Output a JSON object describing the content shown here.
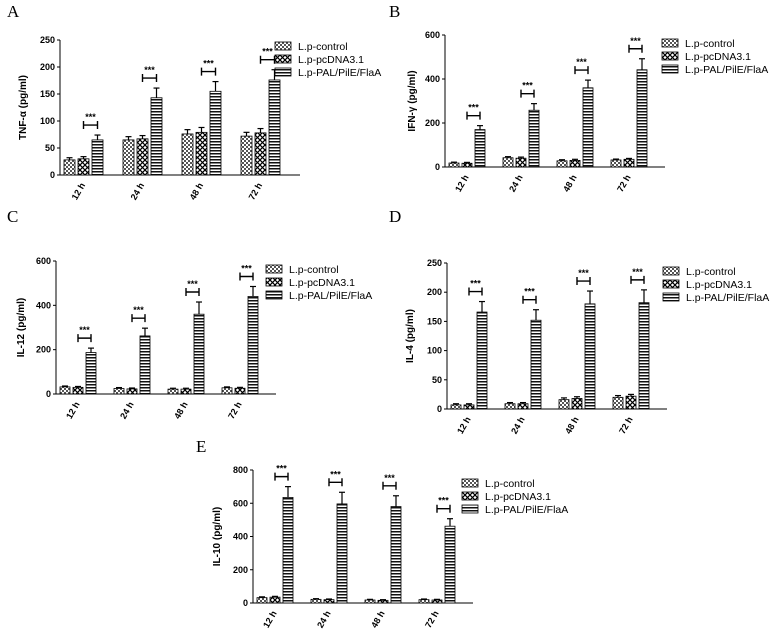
{
  "legend": [
    "L.p-control",
    "L.p-pcDNA3.1",
    "L.p-PAL/PilE/FlaA"
  ],
  "chart_data": [
    {
      "panel": "A",
      "type": "bar",
      "ylabel": "TNF-α (pg/ml)",
      "categories": [
        "12 h",
        "24 h",
        "48 h",
        "72 h"
      ],
      "ylim": [
        0,
        250
      ],
      "yticks": [
        "0",
        "50",
        "100",
        "150",
        "200",
        "250"
      ],
      "significance": "***",
      "series": [
        {
          "name": "L.p-control",
          "values": [
            28,
            65,
            76,
            72
          ],
          "errors": [
            4,
            6,
            8,
            7
          ]
        },
        {
          "name": "L.p-pcDNA3.1",
          "values": [
            30,
            67,
            79,
            78
          ],
          "errors": [
            4,
            6,
            9,
            8
          ]
        },
        {
          "name": "L.p-PAL/PilE/FlaA",
          "values": [
            65,
            143,
            155,
            176
          ],
          "errors": [
            9,
            18,
            18,
            19
          ]
        }
      ]
    },
    {
      "panel": "B",
      "type": "bar",
      "ylabel": "IFN-γ (pg/ml)",
      "categories": [
        "12 h",
        "24 h",
        "48 h",
        "72 h"
      ],
      "ylim": [
        0,
        600
      ],
      "yticks": [
        "0",
        "200",
        "400",
        "600"
      ],
      "significance": "***",
      "series": [
        {
          "name": "L.p-control",
          "values": [
            18,
            42,
            28,
            32
          ],
          "errors": [
            4,
            5,
            5,
            4
          ]
        },
        {
          "name": "L.p-pcDNA3.1",
          "values": [
            17,
            40,
            30,
            35
          ],
          "errors": [
            4,
            5,
            5,
            4
          ]
        },
        {
          "name": "L.p-PAL/PilE/FlaA",
          "values": [
            170,
            258,
            360,
            442
          ],
          "errors": [
            18,
            30,
            35,
            50
          ]
        }
      ]
    },
    {
      "panel": "C",
      "type": "bar",
      "ylabel": "IL-12 (pg/ml)",
      "categories": [
        "12 h",
        "24 h",
        "48 h",
        "72 h"
      ],
      "ylim": [
        0,
        600
      ],
      "yticks": [
        "0",
        "200",
        "400",
        "600"
      ],
      "significance": "***",
      "series": [
        {
          "name": "L.p-control",
          "values": [
            32,
            25,
            22,
            28
          ],
          "errors": [
            4,
            4,
            4,
            4
          ]
        },
        {
          "name": "L.p-pcDNA3.1",
          "values": [
            30,
            23,
            22,
            26
          ],
          "errors": [
            4,
            4,
            4,
            4
          ]
        },
        {
          "name": "L.p-PAL/PilE/FlaA",
          "values": [
            187,
            262,
            360,
            440
          ],
          "errors": [
            20,
            35,
            55,
            45
          ]
        }
      ]
    },
    {
      "panel": "D",
      "type": "bar",
      "ylabel": "IL-4 (pg/ml)",
      "categories": [
        "12 h",
        "24 h",
        "48 h",
        "72 h"
      ],
      "ylim": [
        0,
        250
      ],
      "yticks": [
        "0",
        "50",
        "100",
        "150",
        "200",
        "250"
      ],
      "significance": "***",
      "series": [
        {
          "name": "L.p-control",
          "values": [
            7,
            9,
            16,
            20
          ],
          "errors": [
            2,
            2,
            3,
            3
          ]
        },
        {
          "name": "L.p-pcDNA3.1",
          "values": [
            7,
            9,
            18,
            22
          ],
          "errors": [
            2,
            2,
            3,
            3
          ]
        },
        {
          "name": "L.p-PAL/PilE/FlaA",
          "values": [
            166,
            152,
            180,
            182
          ],
          "errors": [
            18,
            18,
            22,
            22
          ]
        }
      ]
    },
    {
      "panel": "E",
      "type": "bar",
      "ylabel": "IL-10 (pg/ml)",
      "categories": [
        "12 h",
        "24 h",
        "48 h",
        "72 h"
      ],
      "ylim": [
        0,
        800
      ],
      "yticks": [
        "0",
        "200",
        "400",
        "600",
        "800"
      ],
      "significance": "***",
      "series": [
        {
          "name": "L.p-control",
          "values": [
            32,
            22,
            18,
            20
          ],
          "errors": [
            5,
            4,
            4,
            4
          ]
        },
        {
          "name": "L.p-pcDNA3.1",
          "values": [
            35,
            20,
            16,
            18
          ],
          "errors": [
            5,
            4,
            4,
            4
          ]
        },
        {
          "name": "L.p-PAL/PilE/FlaA",
          "values": [
            635,
            596,
            580,
            462
          ],
          "errors": [
            65,
            70,
            65,
            45
          ]
        }
      ]
    }
  ]
}
